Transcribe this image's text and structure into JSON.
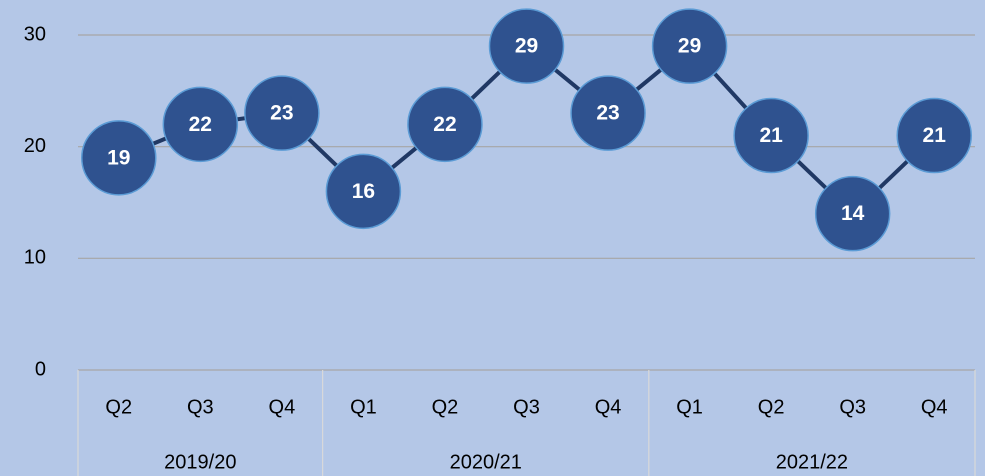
{
  "chart_data": {
    "type": "line",
    "categories": [
      "Q2",
      "Q3",
      "Q4",
      "Q1",
      "Q2",
      "Q3",
      "Q4",
      "Q1",
      "Q2",
      "Q3",
      "Q4"
    ],
    "category_groups": [
      {
        "label": "2019/20",
        "span": 3
      },
      {
        "label": "2020/21",
        "span": 4
      },
      {
        "label": "2021/22",
        "span": 4
      }
    ],
    "series": [
      {
        "color": "#203864",
        "marker_color": "#2f528f",
        "values": [
          19,
          22,
          23,
          16,
          22,
          29,
          23,
          29,
          21,
          14,
          21
        ]
      }
    ],
    "ylim": [
      0,
      30
    ],
    "yticks": [
      0,
      10,
      20,
      30
    ],
    "grid": true
  }
}
